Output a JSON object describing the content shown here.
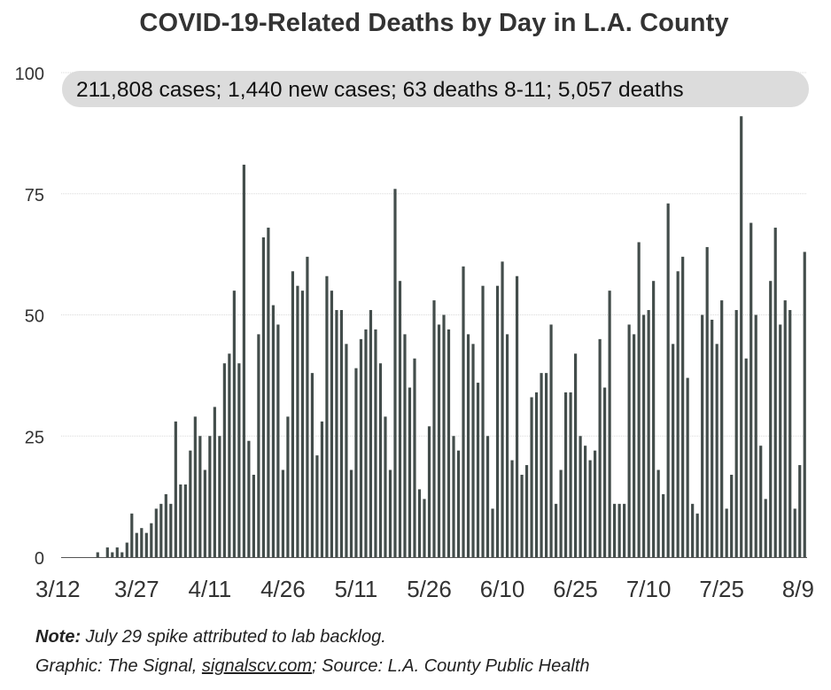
{
  "title": "COVID-19-Related Deaths by Day in L.A. County",
  "banner": "211,808 cases; 1,440 new cases; 63 deaths 8-11; 5,057 deaths",
  "note": {
    "label": "Note:",
    "text": " July 29 spike attributed to lab backlog."
  },
  "credit": {
    "prefix": "Graphic: The Signal, ",
    "link": "signalscv.com",
    "suffix": "; Source: L.A. County Public Health"
  },
  "colors": {
    "bar": "#434d4b",
    "banner_bg": "#dcdcdc",
    "grid": "#d9d9d9",
    "axis": "#555555"
  },
  "chart_data": {
    "type": "bar",
    "title": "COVID-19-Related Deaths by Day in L.A. County",
    "xlabel": "",
    "ylabel": "",
    "ylim": [
      0,
      100
    ],
    "y_ticks": [
      0,
      25,
      50,
      75,
      100
    ],
    "x_start": "3/12",
    "x_end": "8/11",
    "x_ticks": [
      {
        "label": "3/12",
        "day": 0
      },
      {
        "label": "3/27",
        "day": 15
      },
      {
        "label": "4/11",
        "day": 30
      },
      {
        "label": "4/26",
        "day": 45
      },
      {
        "label": "5/11",
        "day": 60
      },
      {
        "label": "5/26",
        "day": 75
      },
      {
        "label": "6/10",
        "day": 90
      },
      {
        "label": "6/25",
        "day": 105
      },
      {
        "label": "7/10",
        "day": 120
      },
      {
        "label": "7/25",
        "day": 135
      },
      {
        "label": "8/9",
        "day": 150
      }
    ],
    "grid": true,
    "values": [
      0,
      0,
      0,
      0,
      0,
      0,
      0,
      1,
      0,
      2,
      1,
      2,
      1,
      3,
      9,
      5,
      6,
      5,
      7,
      10,
      11,
      13,
      11,
      28,
      15,
      15,
      22,
      29,
      25,
      18,
      25,
      31,
      25,
      40,
      42,
      55,
      40,
      81,
      24,
      17,
      46,
      66,
      68,
      52,
      48,
      18,
      29,
      59,
      56,
      55,
      62,
      38,
      21,
      28,
      58,
      55,
      51,
      51,
      44,
      18,
      39,
      45,
      47,
      51,
      47,
      40,
      29,
      18,
      76,
      57,
      46,
      35,
      41,
      14,
      12,
      27,
      53,
      48,
      50,
      47,
      25,
      22,
      60,
      46,
      44,
      36,
      56,
      25,
      10,
      56,
      61,
      46,
      20,
      58,
      17,
      19,
      33,
      34,
      38,
      38,
      48,
      11,
      18,
      34,
      34,
      42,
      25,
      23,
      20,
      22,
      45,
      35,
      55,
      11,
      11,
      11,
      48,
      46,
      65,
      50,
      51,
      57,
      18,
      13,
      73,
      44,
      59,
      62,
      37,
      11,
      9,
      50,
      64,
      49,
      44,
      53,
      10,
      17,
      51,
      91,
      41,
      69,
      50,
      23,
      12,
      57,
      68,
      48,
      53,
      51,
      10,
      19,
      63
    ]
  }
}
